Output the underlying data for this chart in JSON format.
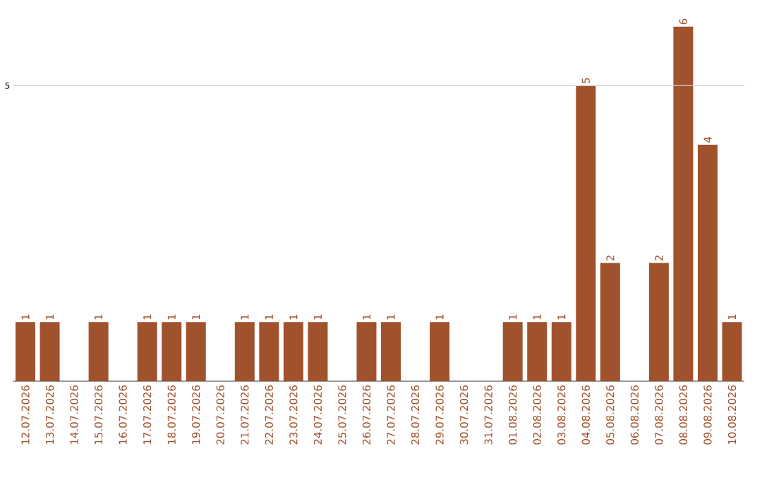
{
  "chart_data": {
    "type": "bar",
    "categories": [
      "12.07.2026",
      "13.07.2026",
      "14.07.2026",
      "15.07.2026",
      "16.07.2026",
      "17.07.2026",
      "18.07.2026",
      "19.07.2026",
      "20.07.2026",
      "21.07.2026",
      "22.07.2026",
      "23.07.2026",
      "24.07.2026",
      "25.07.2026",
      "26.07.2026",
      "27.07.2026",
      "28.07.2026",
      "29.07.2026",
      "30.07.2026",
      "31.07.2026",
      "01.08.2026",
      "02.08.2026",
      "03.08.2026",
      "04.08.2026",
      "05.08.2026",
      "06.08.2026",
      "07.08.2026",
      "08.08.2026",
      "09.08.2026",
      "10.08.2026"
    ],
    "values": [
      1,
      1,
      0,
      1,
      0,
      1,
      1,
      1,
      0,
      1,
      1,
      1,
      1,
      0,
      1,
      1,
      0,
      1,
      0,
      0,
      1,
      1,
      1,
      5,
      2,
      0,
      2,
      6,
      4,
      1
    ],
    "value_labels": [
      "1",
      "1",
      null,
      "1",
      null,
      "1",
      "1",
      "1",
      null,
      "1",
      "1",
      "1",
      "1",
      null,
      "1",
      "1",
      null,
      "1",
      null,
      null,
      "1",
      "1",
      "1",
      "5",
      "2",
      null,
      "2",
      "6",
      "4",
      "1"
    ],
    "color": "#a0522d",
    "ref_lines": [
      {
        "axis": "y",
        "value": 5,
        "label": "5",
        "color": "#cccccc"
      }
    ]
  }
}
